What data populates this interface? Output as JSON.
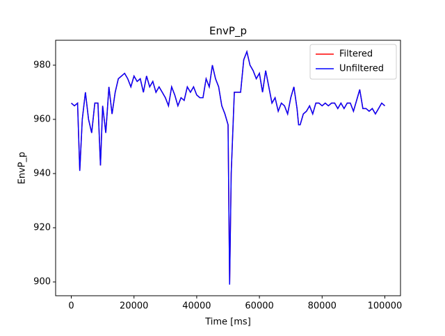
{
  "chart_data": {
    "type": "line",
    "title": "EnvP_p",
    "x_label": "Time [ms]",
    "y_label": "EnvP_p",
    "x": [
      0,
      1000,
      2000,
      2700,
      3500,
      4500,
      5500,
      6500,
      7500,
      8500,
      9300,
      10000,
      11000,
      12000,
      13000,
      14000,
      15000,
      16000,
      17000,
      18000,
      19000,
      20000,
      21000,
      22000,
      23000,
      24000,
      25000,
      26000,
      27000,
      28000,
      29000,
      30000,
      31000,
      32000,
      33000,
      34000,
      35000,
      36000,
      37000,
      38000,
      39000,
      40000,
      41000,
      42000,
      43000,
      44000,
      45000,
      46000,
      47000,
      48000,
      49000,
      50000,
      50500,
      51000,
      52000,
      53000,
      54000,
      55000,
      56000,
      57000,
      58000,
      59000,
      60000,
      61000,
      62000,
      63000,
      64000,
      65000,
      66000,
      67000,
      68000,
      69000,
      70000,
      71000,
      72000,
      72500,
      73000,
      74000,
      75000,
      76000,
      77000,
      78000,
      79000,
      80000,
      81000,
      82000,
      83000,
      84000,
      85000,
      86000,
      87000,
      88000,
      89000,
      90000,
      91000,
      92000,
      93000,
      94000,
      95000,
      96000,
      97000,
      98000,
      99000,
      100000
    ],
    "series": [
      {
        "name": "Filtered",
        "color": "#ff0000",
        "values": [
          966,
          965,
          966,
          941,
          960,
          970,
          960,
          955,
          966,
          966,
          943,
          965,
          955,
          972,
          962,
          970,
          975,
          976,
          977,
          975,
          972,
          976,
          974,
          975,
          970,
          976,
          972,
          974,
          970,
          972,
          970,
          968,
          965,
          972,
          969,
          965,
          968,
          967,
          972,
          970,
          972,
          969,
          968,
          968,
          975,
          972,
          980,
          975,
          972,
          965,
          962,
          958,
          899,
          940,
          970,
          970,
          970,
          982,
          985,
          980,
          978,
          975,
          977,
          970,
          978,
          972,
          966,
          968,
          963,
          966,
          965,
          962,
          968,
          972,
          964,
          958,
          958,
          962,
          963,
          965,
          962,
          966,
          966,
          965,
          966,
          965,
          966,
          966,
          964,
          966,
          964,
          966,
          966,
          963,
          967,
          971,
          964,
          964,
          963,
          964,
          962,
          964,
          966,
          965
        ]
      },
      {
        "name": "Unfiltered",
        "color": "#0000ff",
        "values": [
          966,
          965,
          966,
          941,
          960,
          970,
          960,
          955,
          966,
          966,
          943,
          965,
          955,
          972,
          962,
          970,
          975,
          976,
          977,
          975,
          972,
          976,
          974,
          975,
          970,
          976,
          972,
          974,
          970,
          972,
          970,
          968,
          965,
          972,
          969,
          965,
          968,
          967,
          972,
          970,
          972,
          969,
          968,
          968,
          975,
          972,
          980,
          975,
          972,
          965,
          962,
          958,
          899,
          940,
          970,
          970,
          970,
          982,
          985,
          980,
          978,
          975,
          977,
          970,
          978,
          972,
          966,
          968,
          963,
          966,
          965,
          962,
          968,
          972,
          964,
          958,
          958,
          962,
          963,
          965,
          962,
          966,
          966,
          965,
          966,
          965,
          966,
          966,
          964,
          966,
          964,
          966,
          966,
          963,
          967,
          971,
          964,
          964,
          963,
          964,
          962,
          964,
          966,
          965
        ]
      }
    ],
    "xlim": [
      -5000,
      105000
    ],
    "ylim": [
      894.9,
      989.2
    ],
    "xticks": [
      0,
      20000,
      40000,
      60000,
      80000,
      100000
    ],
    "yticks": [
      900,
      920,
      940,
      960,
      980
    ],
    "legend": "upper right"
  }
}
